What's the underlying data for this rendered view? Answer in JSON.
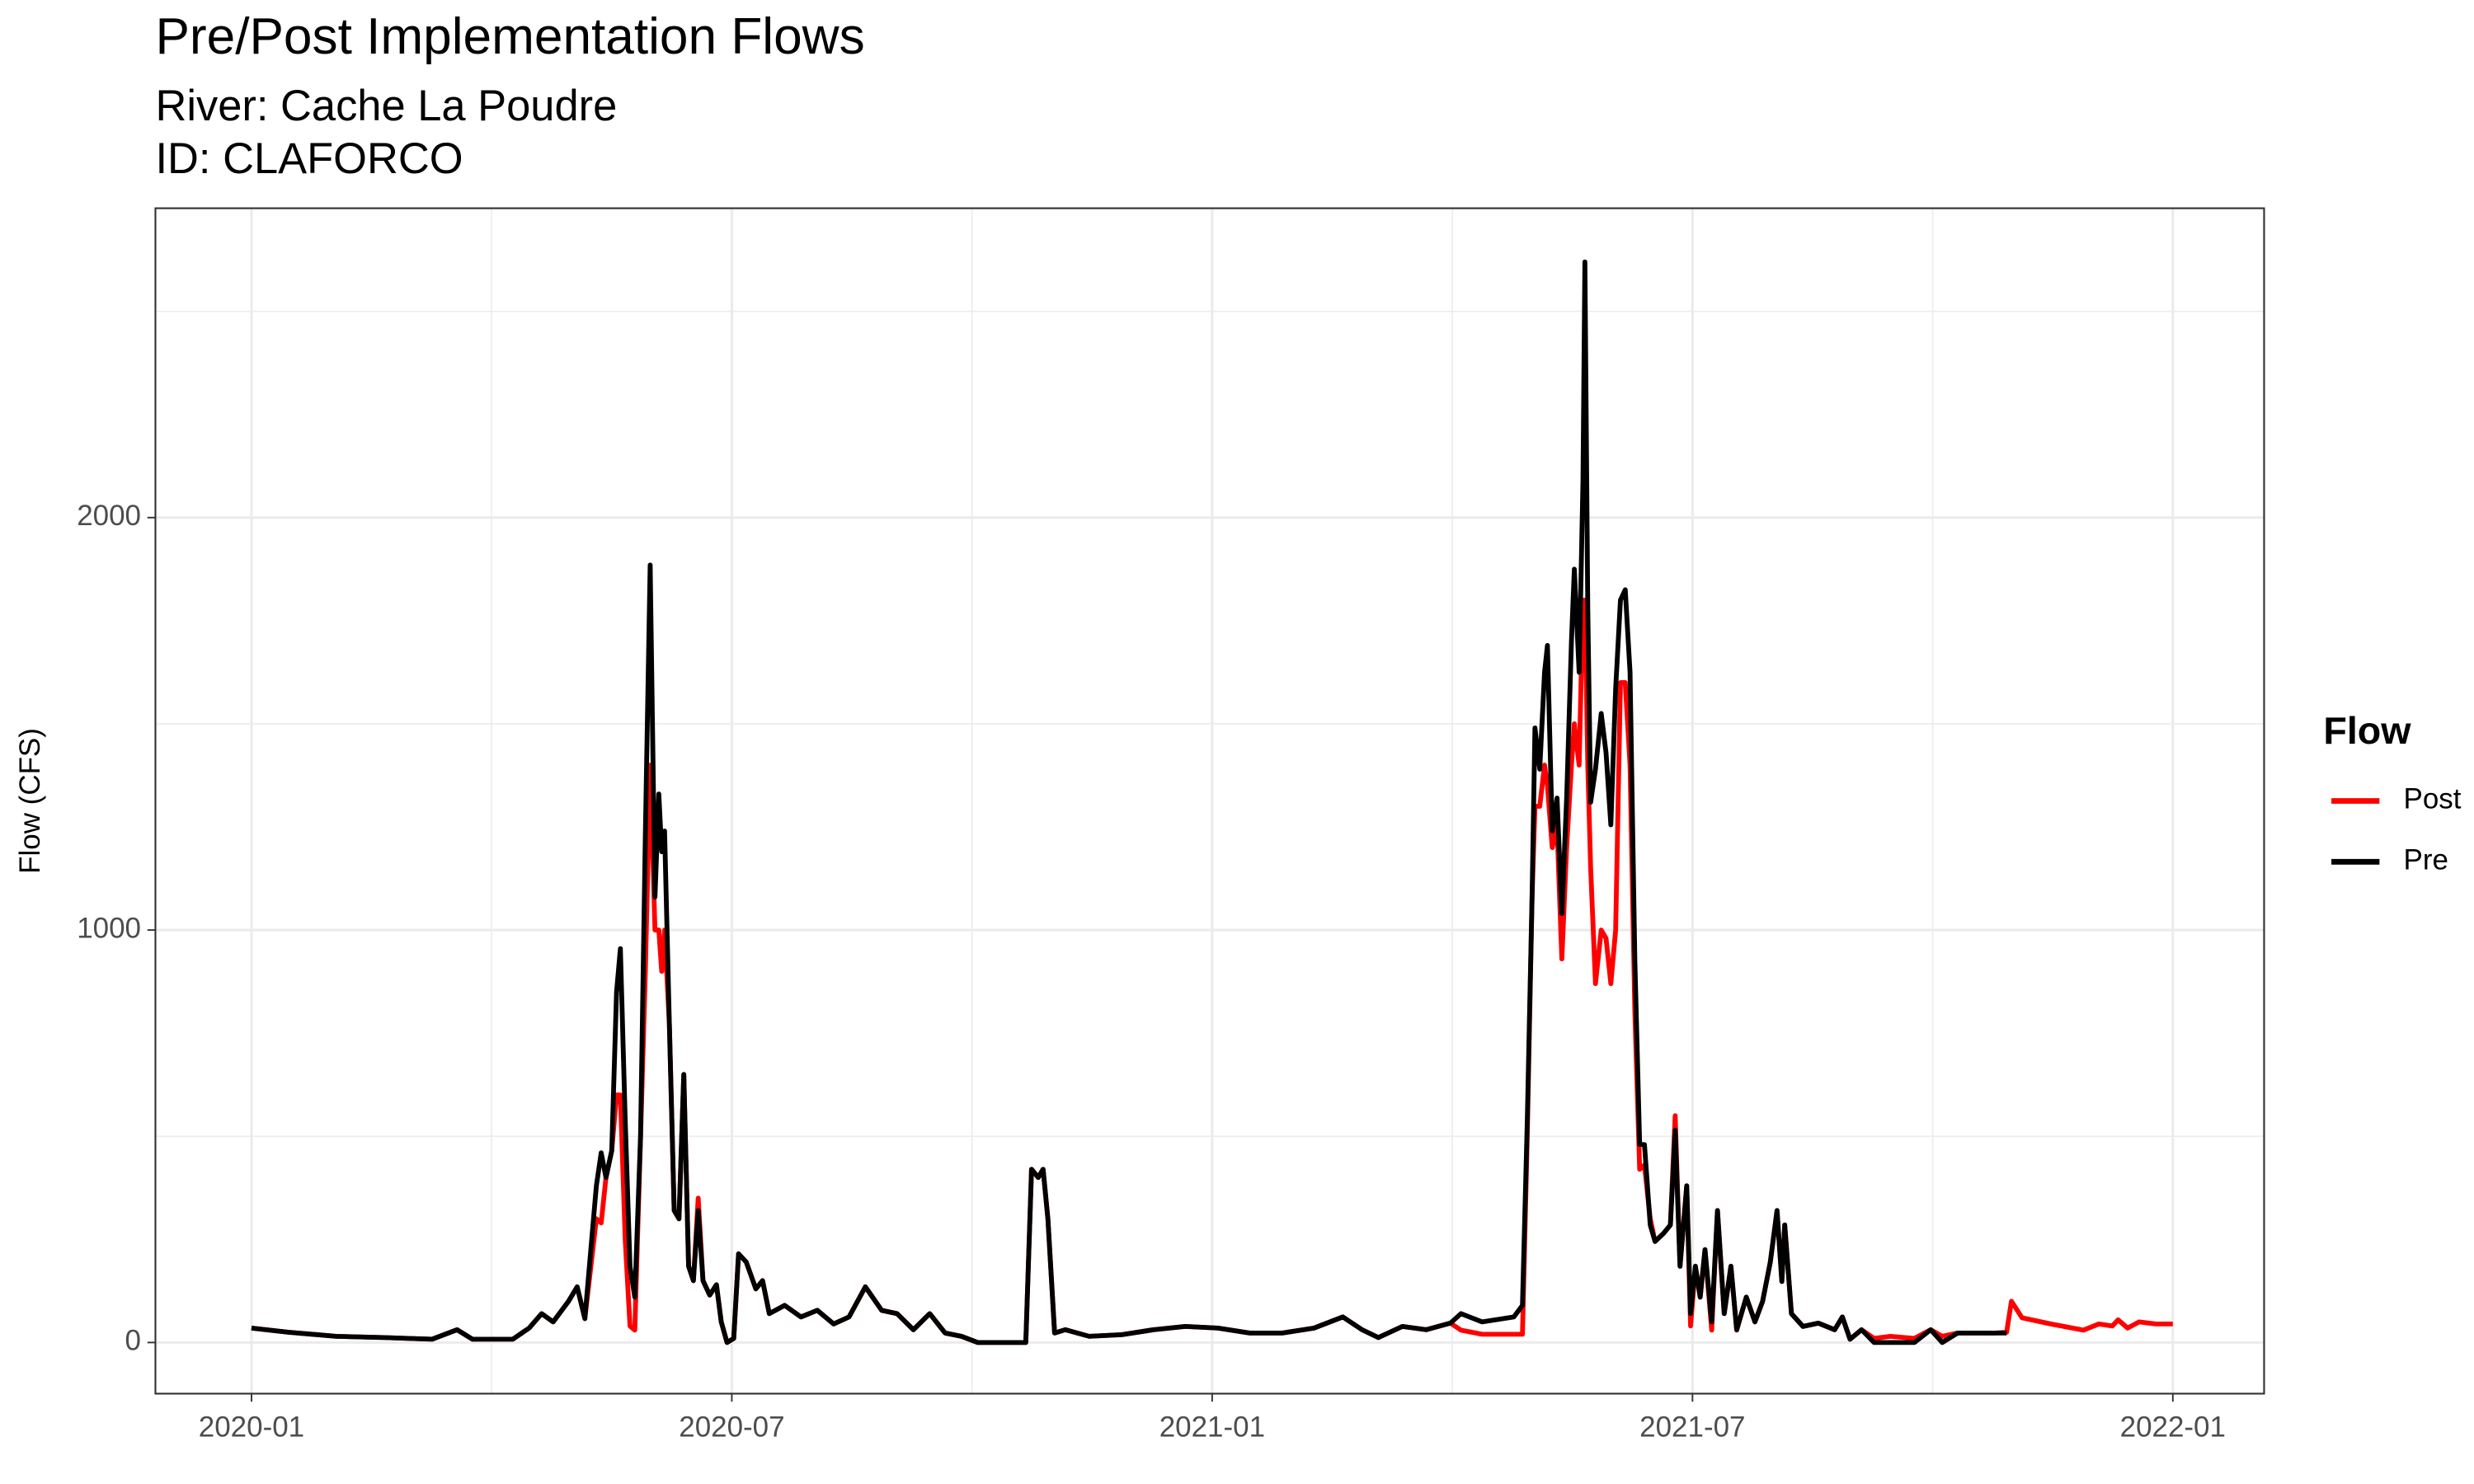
{
  "chart_data": {
    "type": "line",
    "title": "Pre/Post Implementation Flows",
    "subtitle": [
      "River: Cache La Poudre",
      "ID: CLAFORCO"
    ],
    "y_label": "Flow (CFS)",
    "legend_title": "Flow",
    "legend_position": "right",
    "grid": true,
    "xlim": [
      2019.9,
      2022.095
    ],
    "xticks": [
      {
        "value": 2020,
        "label": "2020-01"
      },
      {
        "value": 2020.5,
        "label": "2020-07"
      },
      {
        "value": 2021,
        "label": "2021-01"
      },
      {
        "value": 2021.5,
        "label": "2021-07"
      },
      {
        "value": 2022,
        "label": "2022-01"
      }
    ],
    "x_minor_ticks": [
      2020.25,
      2020.75,
      2021.25,
      2021.75
    ],
    "ylim": [
      -124,
      2750
    ],
    "yticks": [
      0,
      1000,
      2000
    ],
    "y_minor_ticks": [
      500,
      1500,
      2500
    ],
    "x": [
      2020.0,
      2020.038,
      2020.088,
      2020.138,
      2020.188,
      2020.214,
      2020.23,
      2020.272,
      2020.289,
      2020.302,
      2020.314,
      2020.33,
      2020.339,
      2020.347,
      2020.359,
      2020.364,
      2020.369,
      2020.375,
      2020.38,
      2020.384,
      2020.389,
      2020.394,
      2020.399,
      2020.405,
      2020.41,
      2020.415,
      2020.42,
      2020.424,
      2020.427,
      2020.43,
      2020.435,
      2020.44,
      2020.445,
      2020.45,
      2020.455,
      2020.46,
      2020.465,
      2020.47,
      2020.477,
      2020.484,
      2020.489,
      2020.495,
      2020.502,
      2020.507,
      2020.515,
      2020.525,
      2020.532,
      2020.539,
      2020.555,
      2020.572,
      2020.589,
      2020.606,
      2020.622,
      2020.639,
      2020.656,
      2020.672,
      2020.689,
      2020.706,
      2020.722,
      2020.739,
      2020.756,
      2020.781,
      2020.806,
      2020.812,
      2020.819,
      2020.824,
      2020.829,
      2020.836,
      2020.847,
      2020.872,
      2020.906,
      2020.939,
      2020.972,
      2021.006,
      2021.039,
      2021.073,
      2021.106,
      2021.136,
      2021.156,
      2021.173,
      2021.198,
      2021.223,
      2021.248,
      2021.259,
      2021.281,
      2021.314,
      2021.323,
      2021.328,
      2021.333,
      2021.336,
      2021.341,
      2021.346,
      2021.349,
      2021.354,
      2021.359,
      2021.364,
      2021.369,
      2021.374,
      2021.377,
      2021.382,
      2021.386,
      2021.388,
      2021.391,
      2021.394,
      2021.399,
      2021.405,
      2021.41,
      2021.415,
      2021.42,
      2021.425,
      2021.43,
      2021.435,
      2021.44,
      2021.445,
      2021.45,
      2021.456,
      2021.461,
      2021.47,
      2021.477,
      2021.482,
      2021.487,
      2021.494,
      2021.498,
      2021.503,
      2021.508,
      2021.513,
      2021.52,
      2021.526,
      2021.533,
      2021.54,
      2021.546,
      2021.556,
      2021.565,
      2021.573,
      2021.581,
      2021.588,
      2021.593,
      2021.596,
      2021.603,
      2021.615,
      2021.631,
      2021.648,
      2021.656,
      2021.664,
      2021.676,
      2021.689,
      2021.706,
      2021.731,
      2021.748,
      2021.76,
      2021.776,
      2021.793,
      2021.815,
      2021.827,
      2021.832,
      2021.843,
      2021.873,
      2021.907,
      2021.923,
      2021.937,
      2021.943,
      2021.953,
      2021.965,
      2021.982,
      2022.0
    ],
    "series": [
      {
        "name": "Post",
        "color": "#ff0000",
        "values": [
          35,
          25,
          15,
          12,
          8,
          31,
          8,
          8,
          35,
          70,
          50,
          100,
          135,
          58,
          300,
          290,
          400,
          465,
          600,
          600,
          250,
          40,
          30,
          500,
          900,
          1400,
          1000,
          1000,
          900,
          1000,
          770,
          320,
          300,
          650,
          185,
          150,
          350,
          150,
          115,
          140,
          50,
          0,
          10,
          215,
          195,
          130,
          150,
          70,
          90,
          62,
          78,
          45,
          62,
          135,
          78,
          70,
          31,
          70,
          23,
          15,
          0,
          0,
          0,
          420,
          400,
          420,
          300,
          23,
          31,
          15,
          19,
          31,
          39,
          35,
          23,
          23,
          35,
          62,
          31,
          12,
          39,
          31,
          47,
          30,
          20,
          20,
          20,
          500,
          1080,
          1300,
          1300,
          1400,
          1350,
          1200,
          1250,
          930,
          1200,
          1400,
          1500,
          1400,
          1800,
          1800,
          1400,
          1150,
          870,
          1000,
          980,
          870,
          1000,
          1600,
          1600,
          1400,
          800,
          420,
          430,
          300,
          245,
          265,
          285,
          550,
          185,
          380,
          40,
          185,
          110,
          225,
          30,
          320,
          70,
          185,
          30,
          110,
          50,
          100,
          195,
          320,
          148,
          285,
          70,
          39,
          47,
          31,
          62,
          8,
          31,
          10,
          15,
          10,
          31,
          15,
          23,
          23,
          23,
          25,
          100,
          60,
          45,
          30,
          45,
          40,
          55,
          35,
          50,
          45,
          45
        ]
      },
      {
        "name": "Pre",
        "color": "#000000",
        "values": [
          35,
          25,
          15,
          12,
          8,
          31,
          8,
          8,
          35,
          70,
          50,
          100,
          135,
          58,
          380,
          460,
          400,
          465,
          850,
          955,
          540,
          185,
          110,
          500,
          1235,
          1885,
          1080,
          1330,
          1190,
          1240,
          770,
          320,
          300,
          650,
          185,
          150,
          320,
          150,
          115,
          140,
          50,
          0,
          10,
          215,
          195,
          130,
          150,
          70,
          90,
          62,
          78,
          45,
          62,
          135,
          78,
          70,
          31,
          70,
          23,
          15,
          0,
          0,
          0,
          420,
          400,
          420,
          300,
          23,
          31,
          15,
          19,
          31,
          39,
          35,
          23,
          23,
          35,
          62,
          31,
          12,
          39,
          31,
          47,
          70,
          50,
          62,
          90,
          535,
          1080,
          1490,
          1390,
          1625,
          1690,
          1240,
          1320,
          1040,
          1320,
          1700,
          1875,
          1625,
          2090,
          2620,
          1780,
          1310,
          1390,
          1525,
          1430,
          1255,
          1585,
          1800,
          1825,
          1625,
          925,
          480,
          480,
          285,
          245,
          265,
          285,
          515,
          185,
          380,
          70,
          185,
          110,
          225,
          50,
          320,
          70,
          185,
          31,
          110,
          50,
          100,
          195,
          320,
          148,
          285,
          70,
          39,
          47,
          31,
          62,
          8,
          31,
          0,
          0,
          0,
          31,
          0,
          23,
          23,
          23,
          23,
          null,
          null,
          null,
          null,
          null,
          null,
          null,
          null,
          null,
          null,
          null
        ]
      }
    ]
  }
}
